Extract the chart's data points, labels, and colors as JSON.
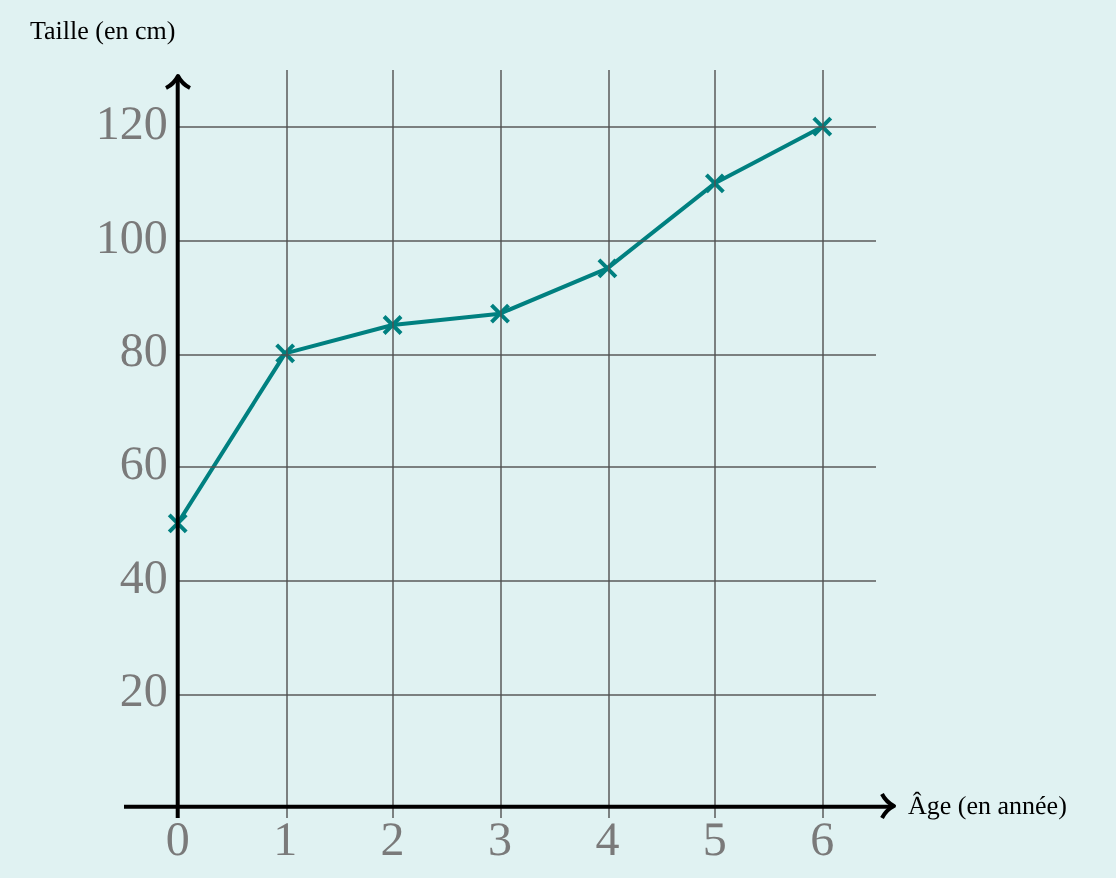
{
  "chart_data": {
    "type": "line",
    "xlabel": "Âge (en année)",
    "ylabel": "Taille (en cm)",
    "x": [
      0,
      1,
      2,
      3,
      4,
      5,
      6
    ],
    "series": [
      {
        "color": "#008080",
        "values": [
          50,
          80,
          85,
          87,
          95,
          110,
          120
        ]
      }
    ],
    "xlim": [
      -0.5,
      6.5
    ],
    "ylim": [
      -2,
      130
    ],
    "xticks": [
      0,
      1,
      2,
      3,
      4,
      5,
      6
    ],
    "yticks": [
      20,
      40,
      60,
      80,
      100,
      120
    ],
    "grid": true,
    "legend": false,
    "marker": "cross",
    "line_style": "solid"
  }
}
